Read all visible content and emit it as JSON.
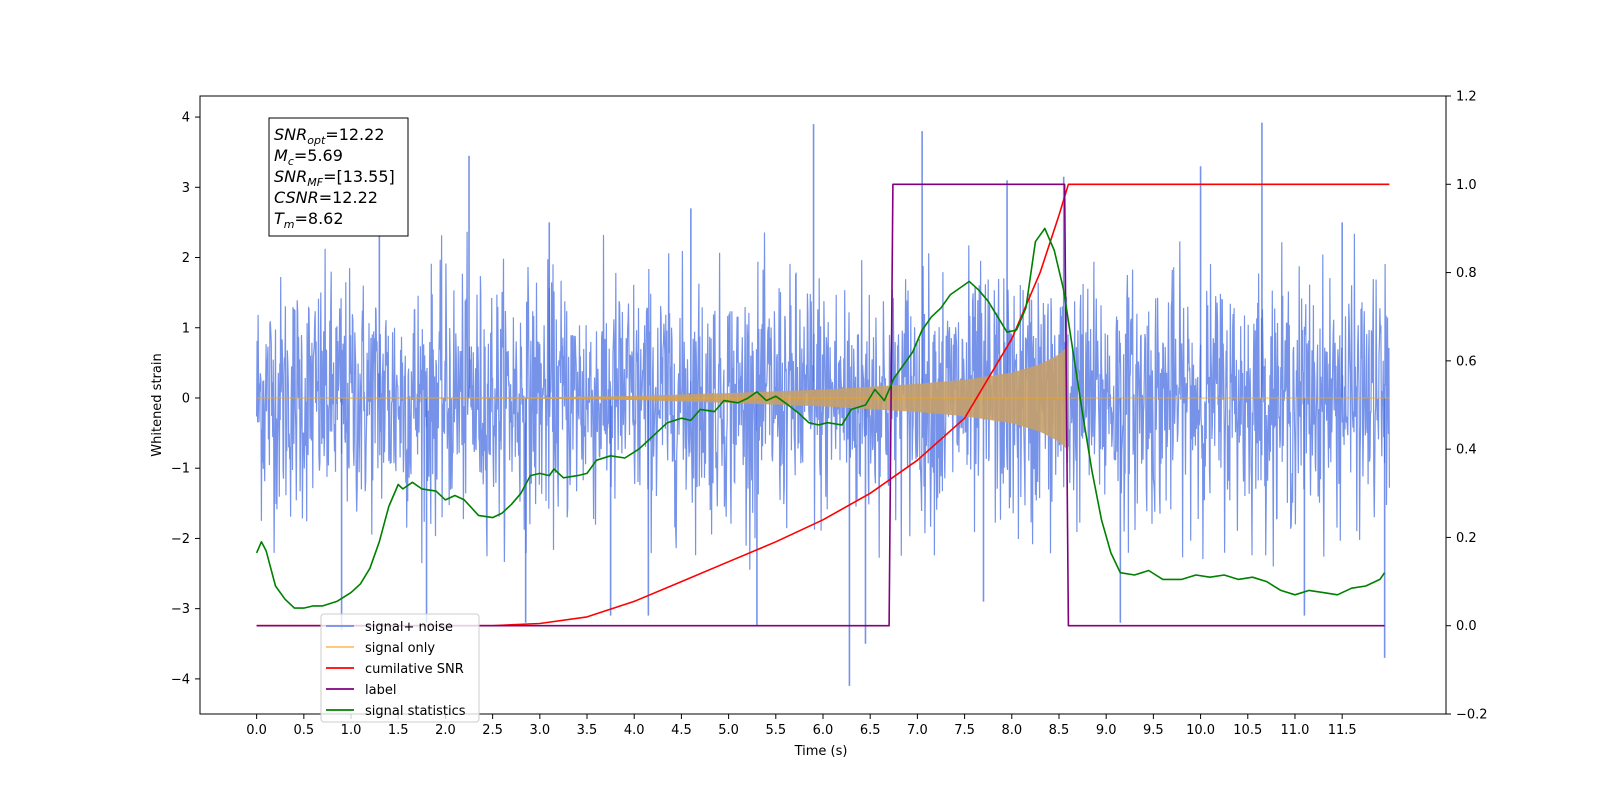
{
  "chart_data": {
    "type": "line",
    "title": "",
    "xlabel": "Time (s)",
    "ylabel": "Whitened strain",
    "y2label": "",
    "xlim": [
      -0.6,
      12.6
    ],
    "ylim": [
      -4.5,
      4.3
    ],
    "y2lim": [
      -0.2,
      1.2
    ],
    "x_ticks": [
      0.0,
      0.5,
      1.0,
      1.5,
      2.0,
      2.5,
      3.0,
      3.5,
      4.0,
      4.5,
      5.0,
      5.5,
      6.0,
      6.5,
      7.0,
      7.5,
      8.0,
      8.5,
      9.0,
      9.5,
      10.0,
      10.5,
      11.0,
      11.5
    ],
    "x_tick_labels": [
      "0.0",
      "0.5",
      "1.0",
      "1.5",
      "2.0",
      "2.5",
      "3.0",
      "3.5",
      "4.0",
      "4.5",
      "5.0",
      "5.5",
      "6.0",
      "6.5",
      "7.0",
      "7.5",
      "8.0",
      "8.5",
      "9.0",
      "9.5",
      "10.0",
      "10.5",
      "11.0",
      "11.5"
    ],
    "y_ticks": [
      -4,
      -3,
      -2,
      -1,
      0,
      1,
      2,
      3,
      4
    ],
    "y_tick_labels": [
      "−4",
      "−3",
      "−2",
      "−1",
      "0",
      "1",
      "2",
      "3",
      "4"
    ],
    "y2_ticks": [
      -0.2,
      0.0,
      0.2,
      0.4,
      0.6,
      0.8,
      1.0,
      1.2
    ],
    "y2_tick_labels": [
      "−0.2",
      "0.0",
      "0.2",
      "0.4",
      "0.6",
      "0.8",
      "1.0",
      "1.2"
    ],
    "grid": false,
    "legend_position": "lower-left",
    "annotation": {
      "lines": [
        {
          "base": "SNR",
          "sub": "opt",
          "rest": "=12.22"
        },
        {
          "base": "M",
          "sub": "c",
          "rest": "=5.69"
        },
        {
          "base": "SNR",
          "sub": "MF",
          "rest": "=[13.55]"
        },
        {
          "base": "CSNR",
          "sub": "",
          "rest": "=12.22"
        },
        {
          "base": "T",
          "sub": "m",
          "rest": "=8.62"
        }
      ]
    },
    "series": [
      {
        "name": "signal+ noise",
        "axis": "left",
        "color": "#4169E1",
        "style": "noise",
        "noise_band": [
          -1.8,
          2.0
        ],
        "extreme_spikes": [
          {
            "x": 0.9,
            "y": -3.3
          },
          {
            "x": 1.3,
            "y": 2.6
          },
          {
            "x": 1.8,
            "y": -3.2
          },
          {
            "x": 2.25,
            "y": 3.45
          },
          {
            "x": 2.85,
            "y": -3.2
          },
          {
            "x": 3.1,
            "y": 2.5
          },
          {
            "x": 3.75,
            "y": -3.1
          },
          {
            "x": 4.15,
            "y": -3.1
          },
          {
            "x": 4.6,
            "y": 2.7
          },
          {
            "x": 5.3,
            "y": -3.25
          },
          {
            "x": 5.9,
            "y": 3.9
          },
          {
            "x": 6.28,
            "y": -4.1
          },
          {
            "x": 6.45,
            "y": -3.5
          },
          {
            "x": 7.05,
            "y": 3.8
          },
          {
            "x": 7.7,
            "y": -2.9
          },
          {
            "x": 7.95,
            "y": 3.1
          },
          {
            "x": 8.55,
            "y": 3.15
          },
          {
            "x": 9.15,
            "y": -3.2
          },
          {
            "x": 10.0,
            "y": 3.3
          },
          {
            "x": 10.65,
            "y": 3.92
          },
          {
            "x": 11.1,
            "y": -3.1
          },
          {
            "x": 11.95,
            "y": -3.7
          },
          {
            "x": 11.5,
            "y": 2.5
          }
        ]
      },
      {
        "name": "signal only",
        "axis": "left",
        "color": "#FFA500",
        "style": "chirp",
        "merger_time": 8.6,
        "envelope": [
          {
            "x": 0.0,
            "y": 0.0
          },
          {
            "x": 3.0,
            "y": 0.01
          },
          {
            "x": 4.0,
            "y": 0.03
          },
          {
            "x": 5.0,
            "y": 0.07
          },
          {
            "x": 6.0,
            "y": 0.12
          },
          {
            "x": 7.0,
            "y": 0.2
          },
          {
            "x": 7.5,
            "y": 0.26
          },
          {
            "x": 8.0,
            "y": 0.36
          },
          {
            "x": 8.3,
            "y": 0.48
          },
          {
            "x": 8.5,
            "y": 0.62
          },
          {
            "x": 8.6,
            "y": 0.75
          }
        ]
      },
      {
        "name": "cumilative SNR",
        "axis": "right",
        "color": "#FF0000",
        "style": "line",
        "points": [
          {
            "x": 0.0,
            "y": 0.0
          },
          {
            "x": 2.5,
            "y": 0.0
          },
          {
            "x": 3.0,
            "y": 0.005
          },
          {
            "x": 3.5,
            "y": 0.02
          },
          {
            "x": 4.0,
            "y": 0.055
          },
          {
            "x": 4.5,
            "y": 0.1
          },
          {
            "x": 5.0,
            "y": 0.145
          },
          {
            "x": 5.5,
            "y": 0.19
          },
          {
            "x": 6.0,
            "y": 0.24
          },
          {
            "x": 6.5,
            "y": 0.3
          },
          {
            "x": 7.0,
            "y": 0.375
          },
          {
            "x": 7.5,
            "y": 0.47
          },
          {
            "x": 8.0,
            "y": 0.65
          },
          {
            "x": 8.3,
            "y": 0.8
          },
          {
            "x": 8.5,
            "y": 0.93
          },
          {
            "x": 8.6,
            "y": 1.0
          },
          {
            "x": 12.0,
            "y": 1.0
          }
        ]
      },
      {
        "name": "label",
        "axis": "right",
        "color": "#800080",
        "style": "line",
        "points": [
          {
            "x": 0.0,
            "y": 0.0
          },
          {
            "x": 6.7,
            "y": 0.0
          },
          {
            "x": 6.74,
            "y": 1.0
          },
          {
            "x": 8.56,
            "y": 1.0
          },
          {
            "x": 8.6,
            "y": 0.0
          },
          {
            "x": 11.95,
            "y": 0.0
          }
        ]
      },
      {
        "name": "signal statistics",
        "axis": "right",
        "color": "#008000",
        "style": "line",
        "points": [
          {
            "x": 0.0,
            "y": 0.165
          },
          {
            "x": 0.05,
            "y": 0.19
          },
          {
            "x": 0.1,
            "y": 0.17
          },
          {
            "x": 0.2,
            "y": 0.09
          },
          {
            "x": 0.3,
            "y": 0.06
          },
          {
            "x": 0.4,
            "y": 0.04
          },
          {
            "x": 0.5,
            "y": 0.04
          },
          {
            "x": 0.6,
            "y": 0.045
          },
          {
            "x": 0.7,
            "y": 0.045
          },
          {
            "x": 0.85,
            "y": 0.055
          },
          {
            "x": 1.0,
            "y": 0.075
          },
          {
            "x": 1.1,
            "y": 0.095
          },
          {
            "x": 1.2,
            "y": 0.13
          },
          {
            "x": 1.3,
            "y": 0.19
          },
          {
            "x": 1.4,
            "y": 0.27
          },
          {
            "x": 1.5,
            "y": 0.32
          },
          {
            "x": 1.55,
            "y": 0.31
          },
          {
            "x": 1.65,
            "y": 0.325
          },
          {
            "x": 1.75,
            "y": 0.31
          },
          {
            "x": 1.9,
            "y": 0.305
          },
          {
            "x": 2.0,
            "y": 0.285
          },
          {
            "x": 2.1,
            "y": 0.295
          },
          {
            "x": 2.2,
            "y": 0.285
          },
          {
            "x": 2.35,
            "y": 0.25
          },
          {
            "x": 2.5,
            "y": 0.245
          },
          {
            "x": 2.6,
            "y": 0.255
          },
          {
            "x": 2.7,
            "y": 0.275
          },
          {
            "x": 2.8,
            "y": 0.3
          },
          {
            "x": 2.9,
            "y": 0.34
          },
          {
            "x": 3.0,
            "y": 0.345
          },
          {
            "x": 3.1,
            "y": 0.34
          },
          {
            "x": 3.15,
            "y": 0.355
          },
          {
            "x": 3.25,
            "y": 0.335
          },
          {
            "x": 3.4,
            "y": 0.34
          },
          {
            "x": 3.5,
            "y": 0.345
          },
          {
            "x": 3.6,
            "y": 0.375
          },
          {
            "x": 3.75,
            "y": 0.385
          },
          {
            "x": 3.9,
            "y": 0.38
          },
          {
            "x": 4.05,
            "y": 0.4
          },
          {
            "x": 4.2,
            "y": 0.43
          },
          {
            "x": 4.35,
            "y": 0.46
          },
          {
            "x": 4.5,
            "y": 0.47
          },
          {
            "x": 4.6,
            "y": 0.465
          },
          {
            "x": 4.7,
            "y": 0.49
          },
          {
            "x": 4.85,
            "y": 0.485
          },
          {
            "x": 4.95,
            "y": 0.51
          },
          {
            "x": 5.1,
            "y": 0.505
          },
          {
            "x": 5.2,
            "y": 0.515
          },
          {
            "x": 5.3,
            "y": 0.53
          },
          {
            "x": 5.4,
            "y": 0.51
          },
          {
            "x": 5.5,
            "y": 0.52
          },
          {
            "x": 5.6,
            "y": 0.505
          },
          {
            "x": 5.75,
            "y": 0.48
          },
          {
            "x": 5.85,
            "y": 0.46
          },
          {
            "x": 5.95,
            "y": 0.455
          },
          {
            "x": 6.05,
            "y": 0.46
          },
          {
            "x": 6.2,
            "y": 0.455
          },
          {
            "x": 6.3,
            "y": 0.49
          },
          {
            "x": 6.45,
            "y": 0.5
          },
          {
            "x": 6.55,
            "y": 0.535
          },
          {
            "x": 6.65,
            "y": 0.51
          },
          {
            "x": 6.75,
            "y": 0.56
          },
          {
            "x": 6.85,
            "y": 0.59
          },
          {
            "x": 6.95,
            "y": 0.62
          },
          {
            "x": 7.05,
            "y": 0.67
          },
          {
            "x": 7.15,
            "y": 0.7
          },
          {
            "x": 7.25,
            "y": 0.72
          },
          {
            "x": 7.35,
            "y": 0.75
          },
          {
            "x": 7.45,
            "y": 0.765
          },
          {
            "x": 7.55,
            "y": 0.78
          },
          {
            "x": 7.65,
            "y": 0.76
          },
          {
            "x": 7.75,
            "y": 0.735
          },
          {
            "x": 7.85,
            "y": 0.7
          },
          {
            "x": 7.95,
            "y": 0.665
          },
          {
            "x": 8.05,
            "y": 0.67
          },
          {
            "x": 8.15,
            "y": 0.72
          },
          {
            "x": 8.25,
            "y": 0.87
          },
          {
            "x": 8.35,
            "y": 0.9
          },
          {
            "x": 8.45,
            "y": 0.85
          },
          {
            "x": 8.55,
            "y": 0.76
          },
          {
            "x": 8.65,
            "y": 0.62
          },
          {
            "x": 8.75,
            "y": 0.48
          },
          {
            "x": 8.85,
            "y": 0.35
          },
          {
            "x": 8.95,
            "y": 0.24
          },
          {
            "x": 9.05,
            "y": 0.165
          },
          {
            "x": 9.15,
            "y": 0.12
          },
          {
            "x": 9.3,
            "y": 0.115
          },
          {
            "x": 9.45,
            "y": 0.125
          },
          {
            "x": 9.6,
            "y": 0.105
          },
          {
            "x": 9.8,
            "y": 0.105
          },
          {
            "x": 9.95,
            "y": 0.115
          },
          {
            "x": 10.1,
            "y": 0.11
          },
          {
            "x": 10.25,
            "y": 0.115
          },
          {
            "x": 10.4,
            "y": 0.105
          },
          {
            "x": 10.55,
            "y": 0.11
          },
          {
            "x": 10.7,
            "y": 0.1
          },
          {
            "x": 10.85,
            "y": 0.08
          },
          {
            "x": 11.0,
            "y": 0.07
          },
          {
            "x": 11.15,
            "y": 0.08
          },
          {
            "x": 11.3,
            "y": 0.075
          },
          {
            "x": 11.45,
            "y": 0.07
          },
          {
            "x": 11.6,
            "y": 0.085
          },
          {
            "x": 11.75,
            "y": 0.09
          },
          {
            "x": 11.9,
            "y": 0.105
          },
          {
            "x": 11.95,
            "y": 0.12
          }
        ]
      }
    ],
    "legend_items": [
      {
        "name": "signal+ noise",
        "color": "#6F8EE8"
      },
      {
        "name": "signal only",
        "color": "#FFC067"
      },
      {
        "name": "cumilative SNR",
        "color": "#FF0000"
      },
      {
        "name": "label",
        "color": "#800080"
      },
      {
        "name": "signal statistics",
        "color": "#008000"
      }
    ]
  }
}
